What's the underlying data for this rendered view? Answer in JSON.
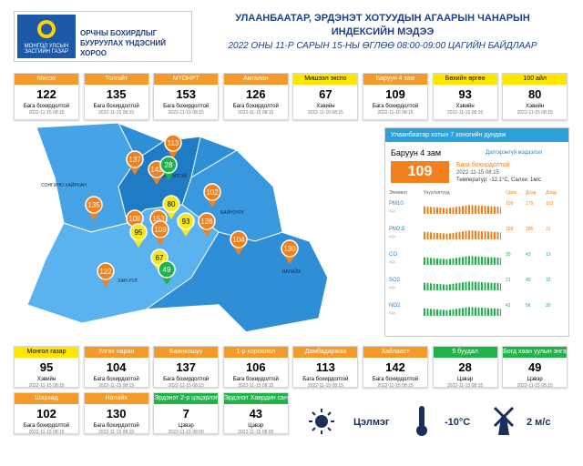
{
  "header": {
    "org_line1": "МОНГОЛ УЛСЫН ЗАСГИЙН ГАЗАР",
    "org_line2": "ОРЧНЫ БОХИРДЛЫГ БУУРУУЛАХ ҮНДЭСНИЙ ХОРОО",
    "title_line1": "УЛААНБААТАР, ЭРДЭНЭТ ХОТУУДЫН АГААРЫН ЧАНАРЫН",
    "title_line2": "ИНДЕКСИЙН МЭДЭЭ",
    "subtitle": "2022 ОНЫ 11-Р САРЫН 15-НЫ ӨГЛӨӨ 08:00-09:00 ЦАГИЙН БАЙДЛААР"
  },
  "top_stations": [
    {
      "name": "Мисэх",
      "value": 122,
      "status": "Бага бохирдолтой",
      "date": "2022-11-15 08:15",
      "color": "#f39a2b"
    },
    {
      "name": "Толгойт",
      "value": 135,
      "status": "Бага бохирдолтой",
      "date": "2022-11-15 08:15",
      "color": "#f39a2b"
    },
    {
      "name": "МҮОНРТ",
      "value": 153,
      "status": "Бага бохирдолтой",
      "date": "2022-11-15 08:15",
      "color": "#f39a2b"
    },
    {
      "name": "Амгалан",
      "value": 126,
      "status": "Бага бохирдолтой",
      "date": "2022-11-15 08:15",
      "color": "#f39a2b"
    },
    {
      "name": "Мишээл экспо",
      "value": 67,
      "status": "Хэвийн",
      "date": "2022-11-15 08:15",
      "color": "#ffe600"
    },
    {
      "name": "Баруун 4 зам",
      "value": 109,
      "status": "Бага бохирдолтой",
      "date": "2022-11-15 08:15",
      "color": "#f39a2b"
    },
    {
      "name": "Бөхийн өргөө",
      "value": 93,
      "status": "Хэвийн",
      "date": "2022-11-15 08:15",
      "color": "#ffe600"
    },
    {
      "name": "100 айл",
      "value": 80,
      "status": "Хэвийн",
      "date": "2022-11-15 08:15",
      "color": "#ffe600"
    }
  ],
  "bottom_stations": [
    {
      "name": "Монгол газар",
      "value": 95,
      "status": "Хэвийн",
      "date": "2022-11-15 08:15",
      "color": "#ffe600"
    },
    {
      "name": "Улгах наран",
      "value": 104,
      "status": "Бага бохирдолтой",
      "date": "2022-11-15 08:15",
      "color": "#f39a2b"
    },
    {
      "name": "Баянхошуу",
      "value": 137,
      "status": "Бага бохирдолтой",
      "date": "2022-11-15 08:15",
      "color": "#f39a2b"
    },
    {
      "name": "1-р хороолол",
      "value": 106,
      "status": "Бага бохирдолтой",
      "date": "2022-11-15 08:15",
      "color": "#f39a2b"
    },
    {
      "name": "Дамбадаржаа",
      "value": 113,
      "status": "Бага бохирдолтой",
      "date": "2022-11-15 08:15",
      "color": "#f39a2b"
    },
    {
      "name": "Хайлааст",
      "value": 142,
      "status": "Бага бохирдолтой",
      "date": "2022-11-15 08:15",
      "color": "#f39a2b"
    },
    {
      "name": "5 буудал",
      "value": 28,
      "status": "Цэвэр",
      "date": "2022-11-15 08:15",
      "color": "#22b24c"
    },
    {
      "name": "Богд хаан уулын энгэр",
      "value": 49,
      "status": "Цэвэр",
      "date": "2022-11-15 08:15",
      "color": "#22b24c"
    },
    {
      "name": "Шархад",
      "value": 102,
      "status": "Бага бохирдолтой",
      "date": "2022-11-15 08:15",
      "color": "#f39a2b"
    },
    {
      "name": "Налайх",
      "value": 130,
      "status": "Бага бохирдолтой",
      "date": "2022-11-15 08:15",
      "color": "#f39a2b"
    },
    {
      "name": "Эрдэнэт 2-р цэцэрлэг",
      "value": 7,
      "status": "Цэвэр",
      "date": "2022-11-15 08:00",
      "color": "#22b24c"
    },
    {
      "name": "Эрдэнэт Хаврдин сан",
      "value": 43,
      "status": "Цэвэр",
      "date": "2022-11-15 08:00",
      "color": "#22b24c"
    }
  ],
  "map": {
    "districts": [
      "СОНГИНО ХАЙРХАН",
      "ЧИНГЭЛТЭЙ",
      "БАЯНЗҮРХ",
      "НАЛАЙХ",
      "ХАН-УУЛ"
    ],
    "markers": [
      {
        "value": 113,
        "color": "#f3801f"
      },
      {
        "value": 137,
        "color": "#f3801f"
      },
      {
        "value": 142,
        "color": "#f3801f"
      },
      {
        "value": 28,
        "color": "#22b24c"
      },
      {
        "value": 80,
        "color": "#f7ea1b"
      },
      {
        "value": 102,
        "color": "#f3801f"
      },
      {
        "value": 135,
        "color": "#f3801f"
      },
      {
        "value": 108,
        "color": "#f3801f"
      },
      {
        "value": 153,
        "color": "#f3801f"
      },
      {
        "value": 95,
        "color": "#f7ea1b"
      },
      {
        "value": 109,
        "color": "#f3801f"
      },
      {
        "value": 93,
        "color": "#f7ea1b"
      },
      {
        "value": 126,
        "color": "#f3801f"
      },
      {
        "value": 104,
        "color": "#f3801f"
      },
      {
        "value": 130,
        "color": "#f3801f"
      },
      {
        "value": 67,
        "color": "#f7ea1b"
      },
      {
        "value": 49,
        "color": "#22b24c"
      },
      {
        "value": 122,
        "color": "#f3801f"
      }
    ]
  },
  "panel": {
    "title": "Улаанбаатар хотын 7 хоногийн дундаж",
    "station": "Баруун 4 зам",
    "link": "Дэлгэрэнгүй мэдээлэл",
    "value": 109,
    "status": "Бага бохирдолтой",
    "date": "2022-11-15 08:15",
    "weather": "Температур: -12.1°C, Салхи: 1м/с",
    "columns": [
      "Элемент",
      "Үзүүлэлтүүд",
      "Одоо",
      "Дээд",
      "Доод"
    ],
    "rows": [
      {
        "element": "PM10",
        "unit": "AQI",
        "values": [
          109,
          179,
          103
        ]
      },
      {
        "element": "PM2.5",
        "unit": "AQI",
        "values": [
          168,
          186,
          31
        ]
      },
      {
        "element": "CO",
        "unit": "AQI",
        "values": [
          30,
          43,
          13
        ]
      },
      {
        "element": "SO2",
        "unit": "AQI",
        "values": [
          21,
          40,
          16
        ]
      },
      {
        "element": "NO2",
        "unit": "AQI",
        "values": [
          42,
          56,
          30
        ]
      }
    ]
  },
  "weather": {
    "condition": "Цэлмэг",
    "temperature": "-10°C",
    "wind": "2 м/с"
  }
}
